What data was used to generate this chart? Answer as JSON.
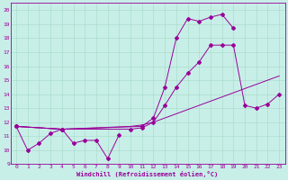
{
  "xlabel": "Windchill (Refroidissement éolien,°C)",
  "bg_color": "#c8eee8",
  "line_color": "#990099",
  "grid_color": "#aaddcc",
  "xlim": [
    -0.5,
    23.5
  ],
  "ylim": [
    9,
    20.5
  ],
  "xticks": [
    0,
    1,
    2,
    3,
    4,
    5,
    6,
    7,
    8,
    9,
    10,
    11,
    12,
    13,
    14,
    15,
    16,
    17,
    18,
    19,
    20,
    21,
    22,
    23
  ],
  "yticks": [
    9,
    10,
    11,
    12,
    13,
    14,
    15,
    16,
    17,
    18,
    19,
    20
  ],
  "line1_x": [
    0,
    1,
    2,
    3,
    4,
    5,
    6,
    7,
    8,
    9
  ],
  "line1_y": [
    11.7,
    10.0,
    10.5,
    11.2,
    11.5,
    10.5,
    10.7,
    10.7,
    9.4,
    11.1
  ],
  "line2_x": [
    0,
    4,
    10,
    11,
    12,
    13,
    14,
    15,
    16,
    17,
    18,
    19,
    20,
    21,
    22,
    23
  ],
  "line2_y": [
    11.7,
    11.5,
    11.5,
    11.6,
    12.0,
    13.2,
    14.5,
    15.5,
    16.3,
    17.5,
    17.5,
    17.5,
    13.2,
    13.0,
    13.3,
    14.0
  ],
  "line3_x": [
    0,
    4,
    11,
    12,
    13,
    14,
    15,
    16,
    17,
    18,
    19
  ],
  "line3_y": [
    11.7,
    11.5,
    11.7,
    12.3,
    14.5,
    18.0,
    19.4,
    19.2,
    19.5,
    19.7,
    18.7
  ],
  "line4_x": [
    0,
    4,
    10,
    11,
    12,
    13,
    14,
    15,
    16,
    17,
    18,
    19,
    20,
    21,
    22,
    23
  ],
  "line4_y": [
    11.7,
    11.5,
    11.7,
    11.8,
    12.0,
    12.3,
    12.6,
    12.9,
    13.2,
    13.5,
    13.8,
    14.1,
    14.4,
    14.7,
    15.0,
    15.3
  ]
}
